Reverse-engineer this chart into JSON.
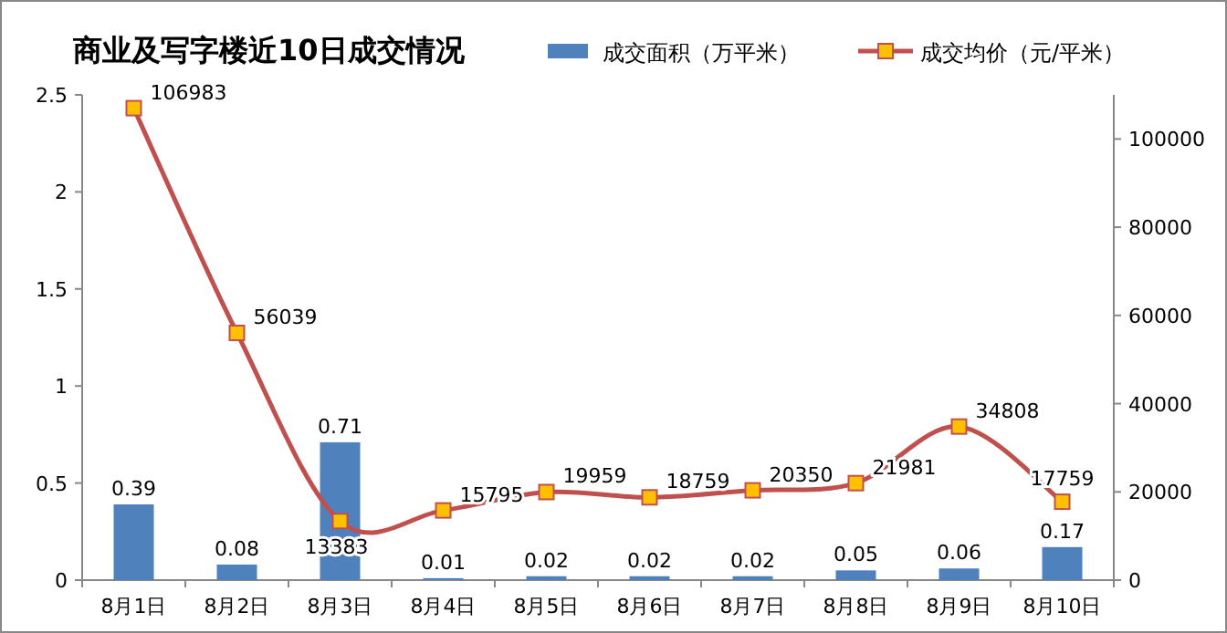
{
  "chart_data": {
    "type": "bar",
    "title": "商业及写字楼近10日成交情况",
    "categories": [
      "8月1日",
      "8月2日",
      "8月3日",
      "8月4日",
      "8月5日",
      "8月6日",
      "8月7日",
      "8月8日",
      "8月9日",
      "8月10日"
    ],
    "series": [
      {
        "name": "成交面积（万平米）",
        "color": "#4f81bd",
        "values": [
          0.39,
          0.08,
          0.71,
          0.01,
          0.02,
          0.02,
          0.02,
          0.05,
          0.06,
          0.17
        ]
      },
      {
        "name": "成交均价（元/平米）",
        "type": "line",
        "axis": "y2",
        "color": "#c0504d",
        "marker": "square",
        "values": [
          106983,
          56039,
          13383,
          15795,
          19959,
          18759,
          20350,
          21981,
          34808,
          17759
        ]
      }
    ],
    "ylim": [
      0,
      2.5
    ],
    "yticks": [
      0,
      0.5,
      1,
      1.5,
      2,
      2.5
    ],
    "y2lim": [
      0,
      110000
    ],
    "y2ticks": [
      0,
      20000,
      40000,
      60000,
      80000,
      100000
    ],
    "data_labels": true,
    "legend": "top right",
    "grid": false
  }
}
